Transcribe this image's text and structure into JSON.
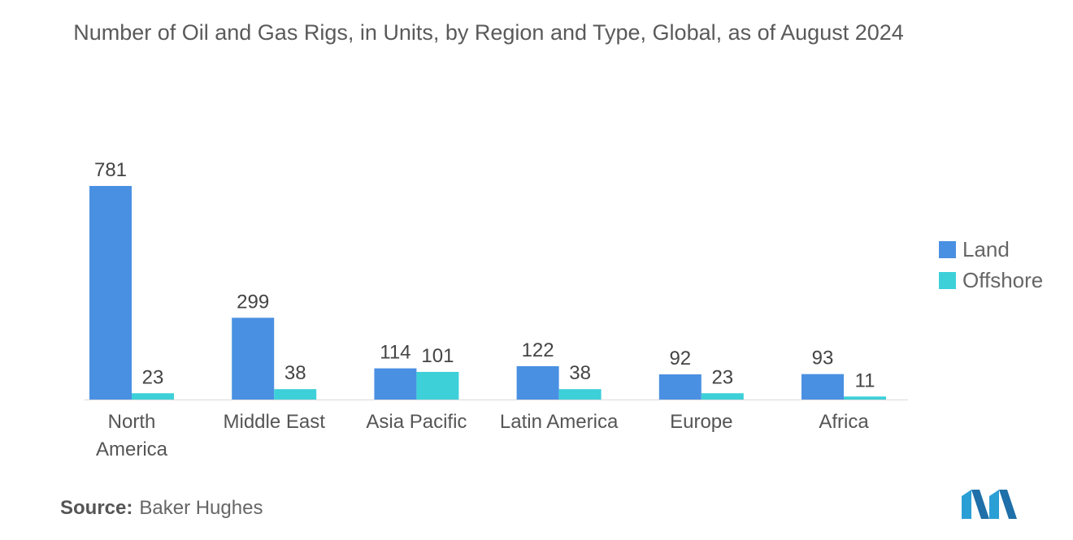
{
  "title": "Number of Oil and Gas Rigs, in Units, by Region and Type, Global, as of August 2024",
  "source": {
    "label": "Source:",
    "value": "Baker Hughes"
  },
  "colors": {
    "land": "#4a90e2",
    "offshore": "#3dd0d9",
    "logo": "#2a9fd6",
    "logo_dark": "#1f6fa8"
  },
  "chart_data": {
    "type": "bar",
    "title": "Number of Oil and Gas Rigs, in Units, by Region and Type, Global, as of August 2024",
    "xlabel": "",
    "ylabel": "",
    "categories": [
      [
        "North",
        "America"
      ],
      [
        "Middle East"
      ],
      [
        "Asia Pacific"
      ],
      [
        "Latin America"
      ],
      [
        "Europe"
      ],
      [
        "Africa"
      ]
    ],
    "series": [
      {
        "name": "Land",
        "values": [
          781,
          299,
          114,
          122,
          92,
          93
        ]
      },
      {
        "name": "Offshore",
        "values": [
          23,
          38,
          101,
          38,
          23,
          11
        ]
      }
    ],
    "ylim": [
      0,
      781
    ],
    "grid": false,
    "legend": "right"
  }
}
